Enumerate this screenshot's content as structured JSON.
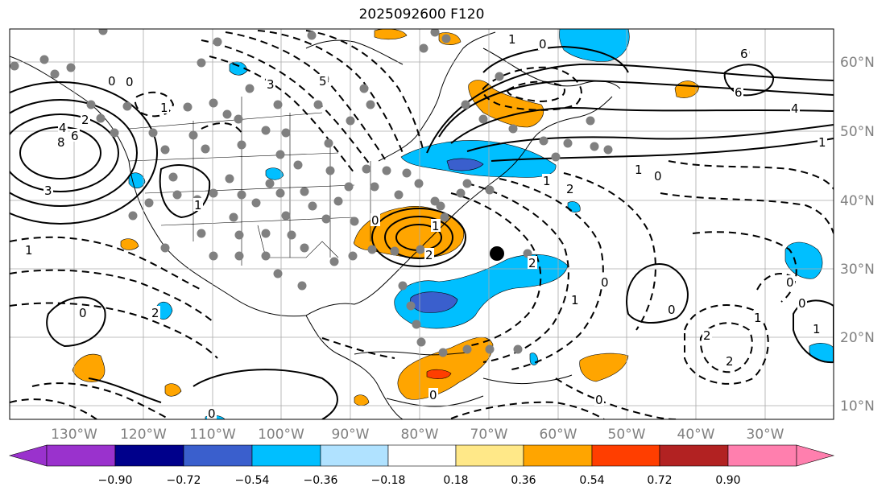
{
  "title": "2025092600 F120",
  "longitude_labels": [
    "130°W",
    "120°W",
    "110°W",
    "100°W",
    "90°W",
    "80°W",
    "70°W",
    "60°W",
    "50°W",
    "40°W",
    "30°W"
  ],
  "latitude_labels": [
    "60°N",
    "50°N",
    "40°N",
    "30°N",
    "20°N",
    "10°N"
  ],
  "colorbar": {
    "tick_labels": [
      "−0.90",
      "−0.72",
      "−0.54",
      "−0.36",
      "−0.18",
      "0.18",
      "0.36",
      "0.54",
      "0.72",
      "0.90"
    ],
    "colors": [
      "#9a32cd",
      "#00008b",
      "#3a5fcd",
      "#00bfff",
      "#b0e2ff",
      "#ffffff",
      "#ffe888",
      "#ffa500",
      "#ff3e00",
      "#b22222",
      "#ff7fae"
    ]
  },
  "contour_labels": [
    "0",
    "0",
    "2",
    "4",
    "8",
    "6",
    "3",
    "1",
    "1",
    "0",
    "1",
    "2",
    "6",
    "6",
    "4",
    "0",
    "5",
    "3",
    "1",
    "1",
    "0",
    "2",
    "1",
    "1",
    "0",
    "0",
    "1",
    "2",
    "2",
    "0",
    "1",
    "1",
    "2",
    "0",
    "2",
    "1",
    "0",
    "0",
    "0",
    "0"
  ],
  "marker": {
    "color": "#000000"
  },
  "station_dot_color": "#808080"
}
